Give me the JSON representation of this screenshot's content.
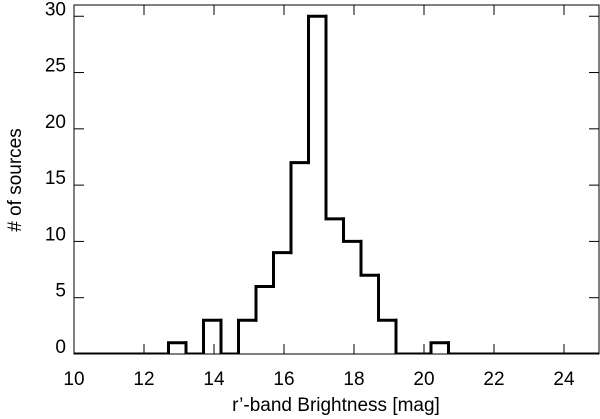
{
  "chart_data": {
    "type": "histogram",
    "x_label": "r’-band Brightness [mag]",
    "y_label": "# of sources",
    "bins": [
      9.7,
      10.2,
      10.7,
      11.2,
      11.7,
      12.2,
      12.7,
      13.2,
      13.7,
      14.2,
      14.7,
      15.2,
      15.7,
      16.2,
      16.7,
      17.2,
      17.7,
      18.2,
      18.7,
      19.2,
      19.7,
      20.2,
      20.7,
      21.2,
      21.7,
      22.2,
      22.7,
      23.2,
      23.7,
      24.2,
      24.7,
      25.2
    ],
    "values": [
      0,
      0,
      0,
      0,
      0,
      0,
      1,
      0,
      3,
      0,
      3,
      6,
      9,
      17,
      30,
      12,
      10,
      7,
      3,
      0,
      0,
      1,
      0,
      0,
      0,
      0,
      0,
      0,
      0,
      0,
      0
    ],
    "color": "#000000",
    "xlim": [
      10,
      25
    ],
    "xticks": [
      10,
      12,
      14,
      16,
      18,
      20,
      22,
      24
    ],
    "ylim": [
      0,
      31
    ],
    "yticks": [
      0,
      5,
      10,
      15,
      20,
      25,
      30
    ]
  }
}
